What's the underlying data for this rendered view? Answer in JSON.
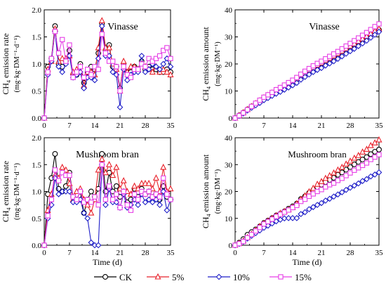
{
  "colors": {
    "CK": "#000000",
    "5%": "#e8212a",
    "10%": "#1f1fc8",
    "15%": "#e63ee6"
  },
  "legend": {
    "position": "bottom-center",
    "entries": [
      {
        "label": "CK",
        "marker": "circle"
      },
      {
        "label": "5%",
        "marker": "triangle"
      },
      {
        "label": "10%",
        "marker": "diamond"
      },
      {
        "label": "15%",
        "marker": "square"
      }
    ]
  },
  "chart_data": [
    {
      "type": "line",
      "title": "Vinasse",
      "ylabel_main": "CH4 emission rate",
      "ylabel_unit": "(mg·kg·DM⁻¹·d⁻¹)",
      "xlabel": "",
      "xlim": [
        0,
        35
      ],
      "ylim": [
        0,
        2.0
      ],
      "xticks": [
        "0",
        "7",
        "14",
        "21",
        "28",
        "35"
      ],
      "yticks": [
        "0.0",
        "0.5",
        "1.0",
        "1.5",
        "2.0"
      ],
      "x": [
        0,
        1,
        2,
        3,
        4,
        5,
        6,
        7,
        8,
        9,
        10,
        11,
        12,
        13,
        14,
        15,
        16,
        17,
        18,
        19,
        20,
        21,
        22,
        23,
        24,
        25,
        26,
        27,
        28,
        29,
        30,
        31,
        32,
        33,
        34,
        35
      ],
      "series": [
        {
          "name": "CK",
          "values": [
            0,
            0.95,
            1.1,
            1.7,
            1.0,
            0.95,
            1.05,
            1.25,
            0.8,
            0.8,
            1.0,
            0.65,
            0.85,
            0.95,
            0.9,
            1.2,
            1.75,
            1.25,
            1.35,
            0.95,
            0.95,
            0.55,
            1.0,
            0.85,
            0.85,
            0.95,
            0.9,
            1.05,
            0.9,
            0.95,
            0.9,
            0.9,
            0.85,
            0.85,
            0.9,
            0.85
          ]
        },
        {
          "name": "5%",
          "values": [
            0,
            0.9,
            1.05,
            1.65,
            1.05,
            1.1,
            1.1,
            1.15,
            0.85,
            0.9,
            0.95,
            0.6,
            0.85,
            0.85,
            0.8,
            1.3,
            1.8,
            1.3,
            1.3,
            1.0,
            0.9,
            0.5,
            1.05,
            0.85,
            0.95,
            0.95,
            0.9,
            1.0,
            0.95,
            0.9,
            0.85,
            0.95,
            0.85,
            0.9,
            0.85,
            0.8
          ]
        },
        {
          "name": "10%",
          "values": [
            0,
            0.8,
            1.05,
            1.6,
            0.95,
            0.85,
            1.0,
            1.15,
            0.75,
            0.8,
            0.85,
            0.55,
            0.75,
            0.75,
            0.7,
            1.1,
            1.7,
            1.15,
            1.15,
            0.85,
            0.8,
            0.2,
            0.9,
            0.7,
            0.8,
            0.85,
            0.85,
            1.15,
            0.85,
            0.9,
            1.0,
            0.95,
            0.9,
            1.0,
            1.1,
            0.95
          ]
        },
        {
          "name": "15%",
          "values": [
            0,
            0.85,
            1.1,
            1.6,
            1.2,
            1.45,
            1.05,
            1.35,
            0.75,
            0.85,
            0.95,
            0.75,
            0.9,
            0.8,
            0.95,
            0.9,
            1.55,
            1.2,
            1.05,
            1.05,
            0.95,
            0.5,
            0.95,
            0.8,
            0.75,
            0.9,
            0.9,
            1.0,
            0.95,
            1.1,
            1.05,
            1.1,
            1.15,
            1.25,
            1.3,
            1.1
          ]
        }
      ]
    },
    {
      "type": "line",
      "title": "Vinasse",
      "ylabel_main": "CH4 emission amount",
      "ylabel_unit": "(mg·kg·DM⁻¹)",
      "xlabel": "",
      "xlim": [
        0,
        35
      ],
      "ylim": [
        0,
        40
      ],
      "xticks": [
        "0",
        "7",
        "14",
        "21",
        "28",
        "35"
      ],
      "yticks": [
        "0",
        "10",
        "20",
        "30",
        "40"
      ],
      "x": [
        0,
        1,
        2,
        3,
        4,
        5,
        6,
        7,
        8,
        9,
        10,
        11,
        12,
        13,
        14,
        15,
        16,
        17,
        18,
        19,
        20,
        21,
        22,
        23,
        24,
        25,
        26,
        27,
        28,
        29,
        30,
        31,
        32,
        33,
        34,
        35
      ],
      "series": [
        {
          "name": "CK",
          "values": [
            0,
            1.0,
            2.0,
            3.2,
            4.3,
            5.3,
            6.3,
            7.4,
            8.3,
            9.2,
            10.1,
            10.9,
            11.8,
            12.7,
            13.5,
            14.5,
            15.6,
            16.6,
            17.6,
            18.5,
            19.3,
            20.1,
            21.0,
            21.8,
            22.6,
            23.5,
            24.4,
            25.3,
            26.2,
            27.1,
            28.0,
            28.9,
            29.8,
            30.7,
            31.6,
            32.6
          ]
        },
        {
          "name": "5%",
          "values": [
            0,
            1.0,
            2.0,
            3.2,
            4.3,
            5.4,
            6.4,
            7.5,
            8.4,
            9.3,
            10.2,
            11.0,
            11.9,
            12.8,
            13.6,
            14.6,
            15.8,
            16.8,
            17.8,
            18.7,
            19.6,
            20.4,
            21.3,
            22.1,
            23.0,
            23.9,
            24.8,
            25.7,
            26.6,
            27.5,
            28.4,
            29.3,
            30.2,
            31.2,
            32.1,
            33.0
          ]
        },
        {
          "name": "10%",
          "values": [
            0,
            0.8,
            1.7,
            2.8,
            3.8,
            4.7,
            5.6,
            6.6,
            7.4,
            8.2,
            9.0,
            9.7,
            10.5,
            11.3,
            12.1,
            13.0,
            14.2,
            15.2,
            16.1,
            17.0,
            17.8,
            18.5,
            19.4,
            20.2,
            21.0,
            21.9,
            22.8,
            23.8,
            24.7,
            25.6,
            26.6,
            27.6,
            28.6,
            29.7,
            30.8,
            31.9
          ]
        },
        {
          "name": "15%",
          "values": [
            0,
            0.9,
            1.9,
            3.1,
            4.3,
            5.5,
            6.6,
            7.7,
            8.6,
            9.5,
            10.5,
            11.3,
            12.2,
            13.1,
            14.0,
            15.0,
            16.2,
            17.3,
            18.3,
            19.3,
            20.2,
            21.0,
            21.9,
            22.8,
            23.7,
            24.6,
            25.6,
            26.6,
            27.6,
            28.6,
            29.6,
            30.6,
            31.6,
            32.7,
            33.8,
            34.8
          ]
        }
      ]
    },
    {
      "type": "line",
      "title": "Mushroom bran",
      "ylabel_main": "CH4 emission rate",
      "ylabel_unit": "(mg·kg·DM⁻¹·d⁻¹)",
      "xlabel": "Time (d)",
      "xlim": [
        0,
        35
      ],
      "ylim": [
        0,
        2.0
      ],
      "xticks": [
        "0",
        "7",
        "14",
        "21",
        "28",
        "35"
      ],
      "yticks": [
        "0.0",
        "0.5",
        "1.0",
        "1.5",
        "2.0"
      ],
      "x": [
        0,
        1,
        2,
        3,
        4,
        5,
        6,
        7,
        8,
        9,
        10,
        11,
        12,
        13,
        14,
        15,
        16,
        17,
        18,
        19,
        20,
        21,
        22,
        23,
        24,
        25,
        26,
        27,
        28,
        29,
        30,
        31,
        32,
        33,
        34,
        35
      ],
      "series": [
        {
          "name": "CK",
          "values": [
            0,
            0.95,
            1.25,
            1.7,
            1.05,
            1.0,
            1.1,
            1.35,
            0.9,
            0.85,
            1.0,
            0.6,
            0.85,
            1.0,
            0.9,
            1.05,
            1.7,
            1.0,
            1.35,
            1.0,
            1.1,
            0.9,
            1.0,
            0.8,
            0.85,
            1.05,
            0.9,
            1.05,
            0.95,
            1.0,
            0.9,
            0.95,
            0.85,
            1.1,
            0.9,
            0.85
          ]
        },
        {
          "name": "5%",
          "values": [
            0,
            0.65,
            0.95,
            1.3,
            1.25,
            1.45,
            1.4,
            1.15,
            0.85,
            1.0,
            1.05,
            0.85,
            0.75,
            0.6,
            0.85,
            1.4,
            1.6,
            1.35,
            1.5,
            1.3,
            1.45,
            1.05,
            1.2,
            1.0,
            0.95,
            1.1,
            1.05,
            1.15,
            1.15,
            1.15,
            1.05,
            1.25,
            1.0,
            1.45,
            1.0,
            1.05
          ]
        },
        {
          "name": "10%",
          "values": [
            0,
            0.5,
            0.75,
            1.25,
            0.95,
            1.0,
            1.0,
            1.0,
            0.8,
            0.8,
            0.85,
            0.6,
            0.5,
            0.05,
            0.0,
            0.0,
            1.5,
            0.75,
            1.05,
            0.8,
            0.8,
            0.7,
            0.95,
            0.7,
            0.75,
            0.85,
            0.75,
            0.95,
            0.8,
            0.85,
            0.8,
            0.85,
            0.75,
            1.0,
            0.65,
            0.85
          ]
        },
        {
          "name": "15%",
          "values": [
            0,
            0.55,
            0.85,
            1.4,
            1.2,
            1.35,
            1.3,
            1.3,
            0.9,
            0.85,
            1.0,
            0.8,
            0.85,
            0.8,
            0.9,
            0.75,
            1.5,
            0.85,
            1.1,
            0.85,
            0.95,
            0.7,
            1.0,
            0.75,
            0.65,
            0.95,
            0.85,
            1.0,
            0.95,
            1.0,
            0.9,
            0.95,
            0.9,
            1.25,
            0.95,
            0.85
          ]
        }
      ]
    },
    {
      "type": "line",
      "title": "Mushroom bran",
      "ylabel_main": "CH4 emission amount",
      "ylabel_unit": "(mg·kg·DM⁻¹)",
      "xlabel": "Time (d)",
      "xlim": [
        0,
        35
      ],
      "ylim": [
        0,
        40
      ],
      "xticks": [
        "0",
        "7",
        "14",
        "21",
        "28",
        "35"
      ],
      "yticks": [
        "0",
        "10",
        "20",
        "30",
        "40"
      ],
      "x": [
        0,
        1,
        2,
        3,
        4,
        5,
        6,
        7,
        8,
        9,
        10,
        11,
        12,
        13,
        14,
        15,
        16,
        17,
        18,
        19,
        20,
        21,
        22,
        23,
        24,
        25,
        26,
        27,
        28,
        29,
        30,
        31,
        32,
        33,
        34,
        35
      ],
      "series": [
        {
          "name": "CK",
          "values": [
            0,
            1.0,
            2.3,
            3.9,
            4.9,
            5.9,
            7.0,
            8.3,
            9.2,
            10.1,
            11.1,
            11.7,
            12.6,
            13.6,
            14.5,
            15.5,
            17.2,
            18.2,
            19.5,
            20.5,
            21.6,
            22.5,
            23.5,
            24.3,
            25.1,
            26.2,
            27.1,
            28.1,
            29.1,
            30.1,
            31.0,
            31.9,
            32.8,
            33.9,
            34.8,
            35.6
          ]
        },
        {
          "name": "5%",
          "values": [
            0,
            0.7,
            1.6,
            2.9,
            4.1,
            5.6,
            7.0,
            8.1,
            9.0,
            10.0,
            11.0,
            11.9,
            12.6,
            13.2,
            14.1,
            15.5,
            17.1,
            18.4,
            19.9,
            21.2,
            22.7,
            23.7,
            24.9,
            25.9,
            26.9,
            28.0,
            29.0,
            30.2,
            31.3,
            32.4,
            33.4,
            34.7,
            35.7,
            37.1,
            38.1,
            39.2
          ]
        },
        {
          "name": "10%",
          "values": [
            0,
            0.5,
            1.3,
            2.5,
            3.5,
            4.5,
            5.5,
            6.5,
            7.3,
            8.1,
            8.9,
            9.5,
            10.0,
            10.1,
            10.1,
            10.1,
            11.6,
            12.3,
            13.4,
            14.2,
            15.0,
            15.7,
            16.6,
            17.3,
            18.1,
            18.9,
            19.7,
            20.6,
            21.4,
            22.2,
            23.0,
            23.9,
            24.6,
            25.6,
            26.3,
            27.1
          ]
        },
        {
          "name": "15%",
          "values": [
            0,
            0.6,
            1.4,
            2.8,
            4.0,
            5.3,
            6.6,
            7.9,
            8.8,
            9.7,
            10.7,
            11.5,
            12.3,
            13.1,
            14.0,
            14.8,
            16.3,
            17.1,
            18.2,
            19.1,
            20.0,
            20.7,
            21.7,
            22.5,
            23.1,
            24.1,
            24.9,
            25.9,
            26.9,
            27.9,
            28.8,
            29.7,
            30.6,
            31.9,
            32.8,
            33.7
          ]
        }
      ]
    }
  ]
}
